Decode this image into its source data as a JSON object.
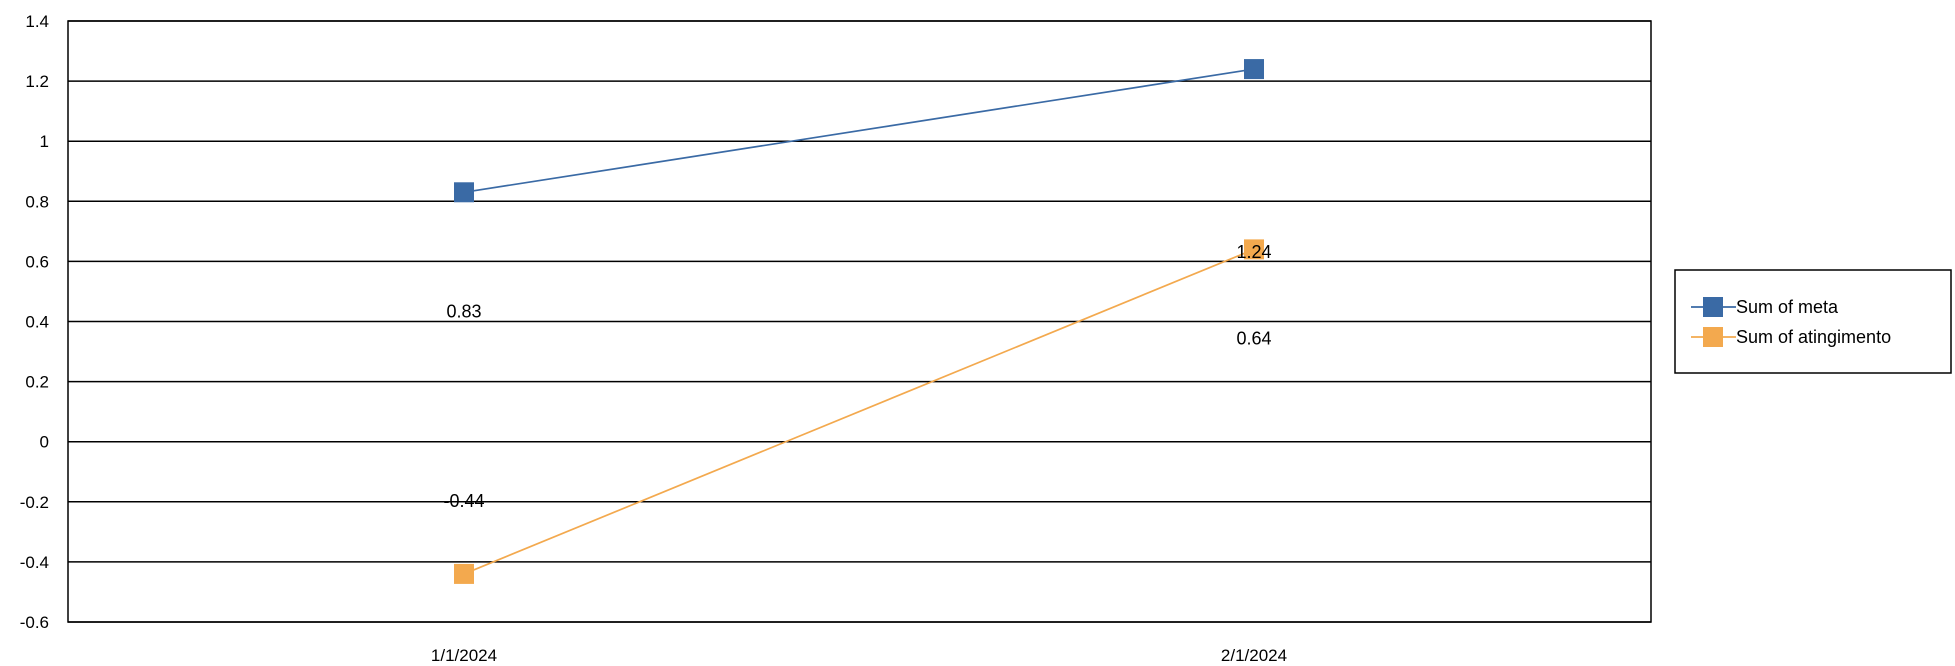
{
  "chart_data": {
    "type": "line",
    "title": "",
    "xlabel": "",
    "ylabel": "",
    "x": [
      "1/1/2024",
      "2/1/2024"
    ],
    "ylim": [
      -0.6,
      1.4
    ],
    "yticks": [
      -0.6,
      -0.4,
      -0.2,
      0,
      0.2,
      0.4,
      0.6,
      0.8,
      1,
      1.2,
      1.4
    ],
    "ytick_labels": [
      "-0.6",
      "-0.4",
      "-0.2",
      "0",
      "0.2",
      "0.4",
      "0.6",
      "0.8",
      "1",
      "1.2",
      "1.4"
    ],
    "grid": true,
    "legend_position": "right",
    "series": [
      {
        "name": "Sum of meta",
        "color": "#3a6aa5",
        "marker": "square",
        "values": [
          0.83,
          1.24
        ],
        "data_labels": [
          "0.83",
          "1.24"
        ]
      },
      {
        "name": "Sum of atingimento",
        "color": "#f3a94e",
        "marker": "square",
        "values": [
          -0.44,
          0.64
        ],
        "data_labels": [
          "-0.44",
          "0.64"
        ]
      }
    ]
  }
}
